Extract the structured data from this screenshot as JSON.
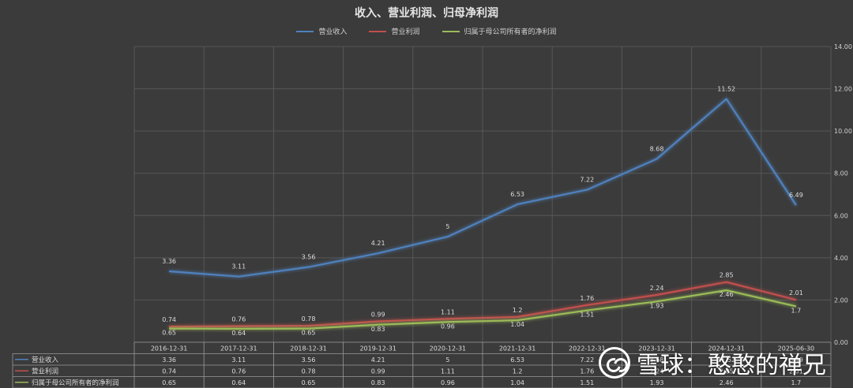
{
  "chart_data": {
    "type": "line",
    "title": "收入、营业利润、归母净利润",
    "categories": [
      "2016-12-31",
      "2017-12-31",
      "2018-12-31",
      "2019-12-31",
      "2020-12-31",
      "2021-12-31",
      "2022-12-31",
      "2023-12-31",
      "2024-12-31",
      "2025-06-30"
    ],
    "series": [
      {
        "name": "营业收入",
        "color": "#4f81bd",
        "values": [
          3.36,
          3.11,
          3.56,
          4.21,
          5,
          6.53,
          7.22,
          8.68,
          11.52,
          6.49
        ]
      },
      {
        "name": "营业利润",
        "color": "#c0504d",
        "values": [
          0.74,
          0.76,
          0.78,
          0.99,
          1.11,
          1.2,
          1.76,
          2.24,
          2.85,
          2.01
        ]
      },
      {
        "name": "归属于母公司所有者的净利润",
        "color": "#9bbb59",
        "values": [
          0.65,
          0.64,
          0.65,
          0.83,
          0.96,
          1.04,
          1.51,
          1.93,
          2.46,
          1.7
        ]
      }
    ],
    "yticks": [
      "0.00",
      "2.00",
      "4.00",
      "6.00",
      "8.00",
      "10.00",
      "12.00",
      "14.00"
    ],
    "ylim": [
      0,
      14
    ],
    "y_axis_side": "right",
    "grid": true,
    "legend_position": "top",
    "data_table": true
  },
  "watermark": {
    "text": "雪球：憨憨的禅兄",
    "icon": "snowball-logo-icon"
  }
}
